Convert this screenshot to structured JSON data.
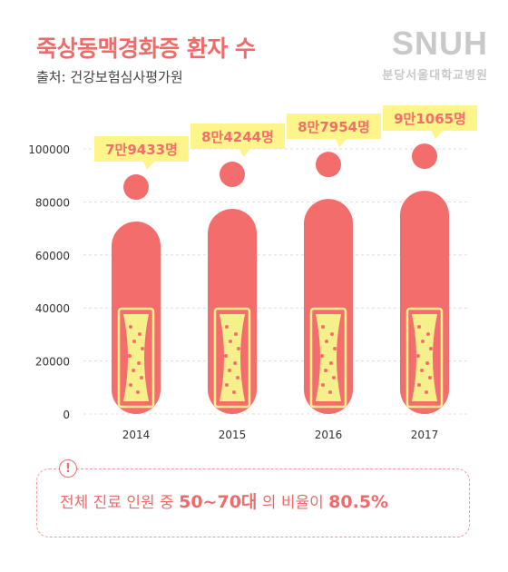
{
  "header": {
    "title": "죽상동맥경화증 환자 수",
    "source": "출처: 건강보험심사평가원"
  },
  "logo": {
    "mark": "SNUH",
    "subtitle": "분당서울대학교병원"
  },
  "colors": {
    "accent": "#f06a6a",
    "bar": "#f46d6d",
    "label_bg": "#fdf48a",
    "artery_yellow": "#f6f08c",
    "grid": "#dddddd"
  },
  "chart_data": {
    "type": "bar",
    "categories": [
      "2014",
      "2015",
      "2016",
      "2017"
    ],
    "values": [
      79433,
      84244,
      87954,
      91065
    ],
    "value_labels": [
      "7만9433명",
      "8만4244명",
      "8만7954명",
      "9만1065명"
    ],
    "yticks": [
      0,
      20000,
      40000,
      60000,
      80000,
      100000
    ],
    "ylim": [
      0,
      100000
    ],
    "grid": true,
    "xlabel": "",
    "ylabel": ""
  },
  "notice": {
    "icon": "exclamation-icon",
    "text_before": "전체 진료 인원 중 ",
    "highlight_age": "50~70대",
    "text_middle": " 의 비율이 ",
    "highlight_ratio": "80.5%"
  }
}
